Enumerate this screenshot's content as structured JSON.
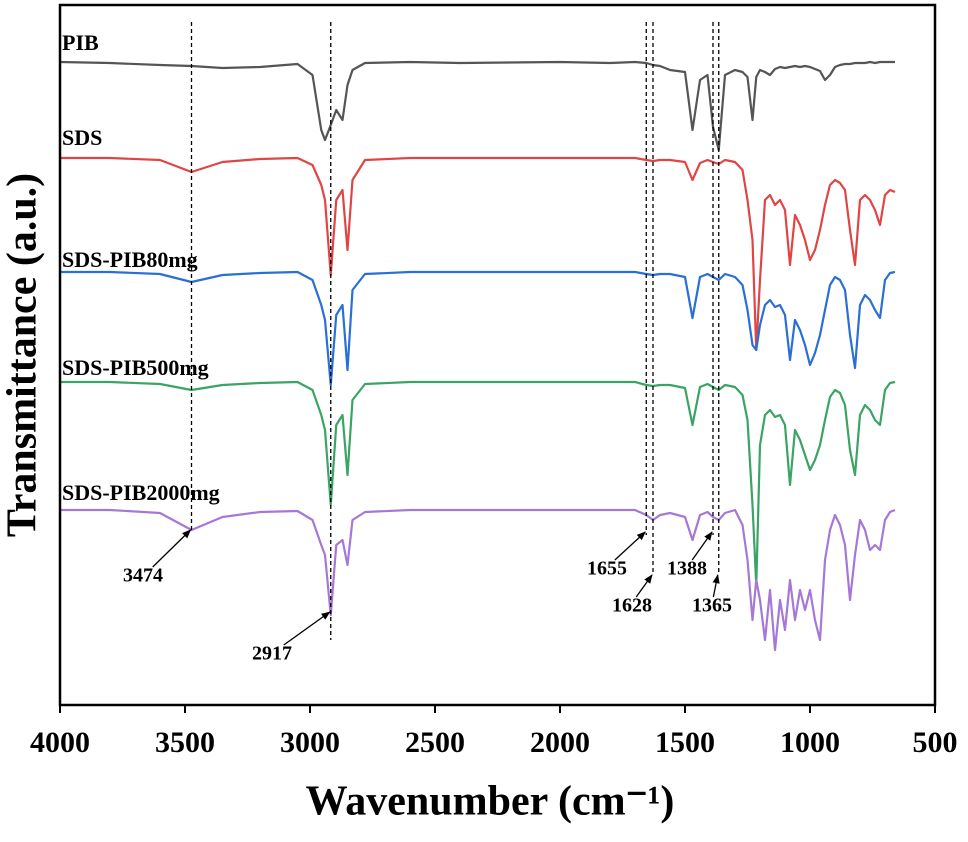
{
  "chart_data": {
    "type": "line",
    "x_label": "Wavenumber (cm⁻¹)",
    "y_label": "Transmittance (a.u.)",
    "xlim": [
      4000,
      500
    ],
    "xticks": [
      4000,
      3500,
      3000,
      2500,
      2000,
      1500,
      1000,
      500
    ],
    "ylim": [
      0,
      700
    ],
    "annotations": [
      3474,
      2917,
      1655,
      1628,
      1388,
      1365
    ],
    "x": [
      4000,
      3800,
      3600,
      3474,
      3350,
      3200,
      3050,
      2990,
      2955,
      2940,
      2917,
      2895,
      2870,
      2850,
      2830,
      2780,
      2600,
      2400,
      2000,
      1800,
      1700,
      1655,
      1628,
      1600,
      1560,
      1500,
      1470,
      1440,
      1410,
      1388,
      1365,
      1340,
      1300,
      1270,
      1250,
      1230,
      1215,
      1200,
      1180,
      1160,
      1140,
      1120,
      1100,
      1080,
      1060,
      1040,
      1020,
      1000,
      980,
      960,
      940,
      920,
      900,
      880,
      860,
      840,
      820,
      800,
      780,
      760,
      740,
      720,
      700,
      680,
      660
    ],
    "series": [
      {
        "name": "PIB",
        "color": "#555555",
        "values": [
          643,
          642,
          640,
          639,
          637,
          638,
          641,
          630,
          575,
          565,
          580,
          595,
          585,
          620,
          635,
          642,
          643,
          642,
          643,
          642,
          643,
          642,
          640,
          639,
          635,
          633,
          575,
          625,
          630,
          578,
          555,
          630,
          635,
          633,
          628,
          585,
          628,
          635,
          633,
          630,
          636,
          638,
          637,
          638,
          639,
          638,
          639,
          638,
          636,
          634,
          625,
          630,
          638,
          640,
          641,
          641,
          642,
          642,
          642,
          643,
          642,
          643,
          643,
          643,
          643
        ]
      },
      {
        "name": "SDS",
        "color": "#e04545",
        "values": [
          547,
          547,
          545,
          533,
          543,
          546,
          547,
          540,
          520,
          505,
          430,
          505,
          515,
          455,
          525,
          545,
          547,
          547,
          547,
          547,
          547,
          545,
          544,
          545,
          545,
          543,
          525,
          542,
          545,
          543,
          541,
          545,
          543,
          535,
          505,
          465,
          355,
          425,
          505,
          510,
          500,
          505,
          495,
          440,
          490,
          480,
          465,
          445,
          455,
          475,
          500,
          520,
          525,
          522,
          515,
          475,
          440,
          505,
          510,
          505,
          495,
          480,
          510,
          515,
          513
        ]
      },
      {
        "name": "SDS-PIB80mg",
        "color": "#2a6fd6",
        "values": [
          433,
          433,
          431,
          423,
          430,
          432,
          433,
          425,
          400,
          385,
          320,
          390,
          400,
          335,
          415,
          431,
          433,
          433,
          433,
          433,
          433,
          431,
          430,
          431,
          431,
          428,
          387,
          428,
          431,
          428,
          425,
          431,
          428,
          420,
          395,
          360,
          355,
          380,
          400,
          405,
          398,
          400,
          390,
          345,
          385,
          375,
          360,
          340,
          352,
          370,
          395,
          420,
          428,
          425,
          415,
          370,
          337,
          400,
          410,
          405,
          395,
          387,
          425,
          432,
          433
        ]
      },
      {
        "name": "SDS-PIB500mg",
        "color": "#3aa464",
        "values": [
          323,
          323,
          321,
          315,
          320,
          322,
          323,
          315,
          290,
          275,
          200,
          280,
          290,
          230,
          305,
          321,
          323,
          323,
          323,
          323,
          323,
          320,
          319,
          320,
          320,
          317,
          280,
          318,
          321,
          318,
          315,
          320,
          318,
          310,
          285,
          200,
          120,
          260,
          290,
          295,
          288,
          290,
          280,
          220,
          275,
          265,
          250,
          235,
          245,
          260,
          285,
          308,
          315,
          312,
          300,
          255,
          230,
          290,
          300,
          295,
          285,
          280,
          315,
          322,
          323
        ]
      },
      {
        "name": "SDS-PIB2000mg",
        "color": "#a678d6",
        "values": [
          195,
          195,
          192,
          175,
          188,
          193,
          194,
          185,
          160,
          150,
          90,
          160,
          165,
          140,
          185,
          193,
          195,
          195,
          195,
          195,
          195,
          190,
          185,
          190,
          192,
          188,
          165,
          190,
          193,
          188,
          185,
          192,
          195,
          180,
          145,
          85,
          125,
          105,
          65,
          115,
          55,
          105,
          75,
          125,
          85,
          115,
          95,
          115,
          85,
          65,
          145,
          175,
          190,
          180,
          160,
          105,
          150,
          185,
          175,
          155,
          160,
          155,
          185,
          193,
          195
        ]
      }
    ]
  }
}
